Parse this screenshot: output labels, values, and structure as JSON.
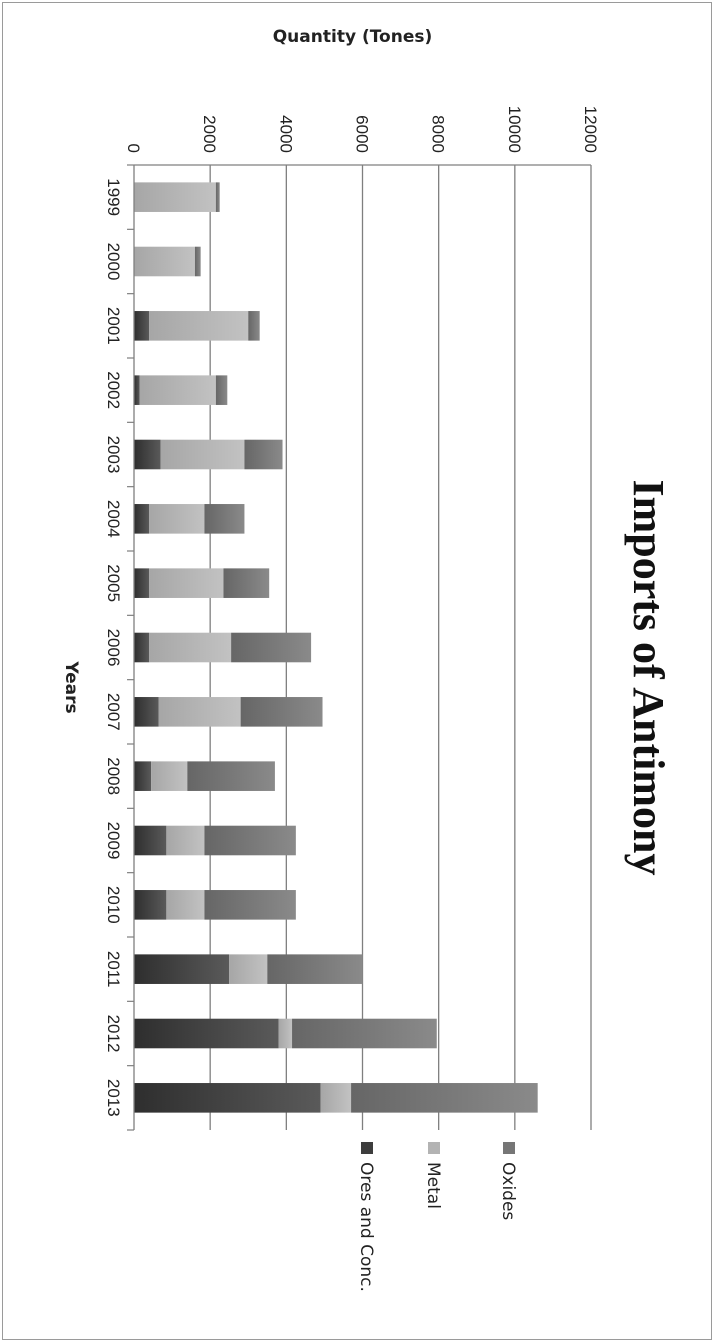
{
  "chart_data": {
    "type": "bar",
    "stacked": true,
    "orientation": "vertical",
    "title": "Imports of Antimony",
    "xlabel": "Years",
    "ylabel": "Quantity (Tones)",
    "ylim": [
      0,
      12000
    ],
    "yticks": [
      0,
      2000,
      4000,
      6000,
      8000,
      10000,
      12000
    ],
    "grid": true,
    "legend_position": "right",
    "categories": [
      "1999",
      "2000",
      "2001",
      "2002",
      "2003",
      "2004",
      "2005",
      "2006",
      "2007",
      "2008",
      "2009",
      "2010",
      "2011",
      "2012",
      "2013"
    ],
    "series": [
      {
        "name": "Ores and Conc.",
        "color": "#3d3d3d",
        "values": [
          0,
          0,
          400,
          150,
          700,
          400,
          400,
          400,
          650,
          450,
          850,
          850,
          2500,
          3800,
          4900
        ]
      },
      {
        "name": "Metal",
        "color": "#b3b3b3",
        "values": [
          2150,
          1600,
          2600,
          2000,
          2200,
          1450,
          1950,
          2150,
          2150,
          950,
          1000,
          1000,
          1000,
          350,
          800
        ]
      },
      {
        "name": "Oxides",
        "color": "#767676",
        "values": [
          100,
          150,
          300,
          300,
          1000,
          1050,
          1200,
          2100,
          2150,
          2300,
          2400,
          2400,
          2500,
          3800,
          4900
        ]
      }
    ]
  }
}
